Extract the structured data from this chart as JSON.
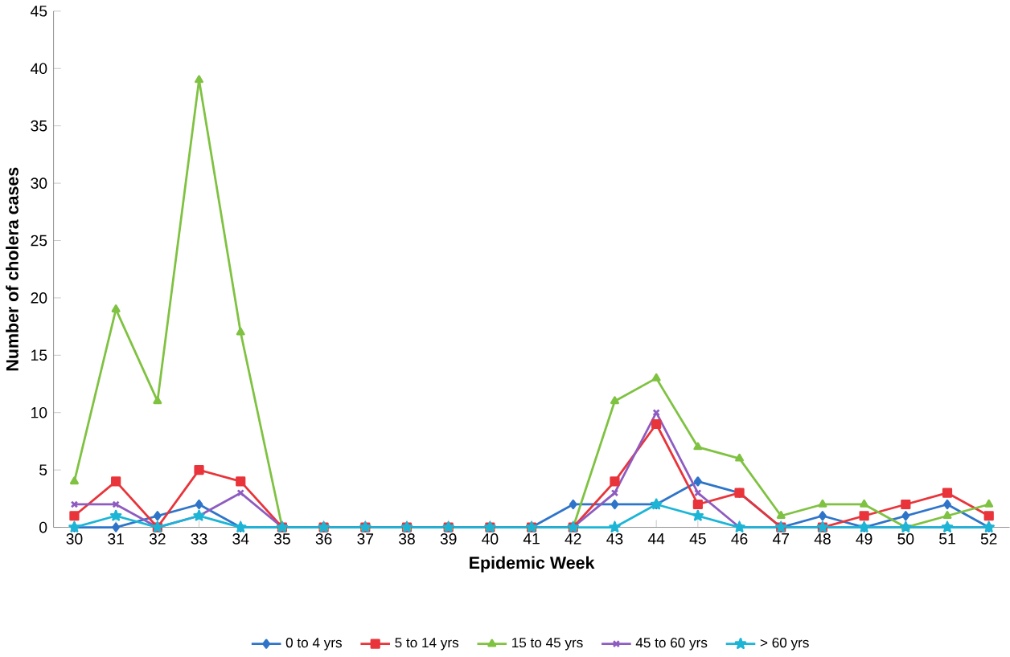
{
  "chart_data": {
    "type": "line",
    "xlabel": "Epidemic Week",
    "ylabel": "Number of cholera cases",
    "categories": [
      "30",
      "31",
      "32",
      "33",
      "34",
      "35",
      "36",
      "37",
      "38",
      "39",
      "40",
      "41",
      "42",
      "43",
      "44",
      "45",
      "46",
      "47",
      "48",
      "49",
      "50",
      "51",
      "52"
    ],
    "ylim": [
      0,
      45
    ],
    "yticks": [
      0,
      5,
      10,
      15,
      20,
      25,
      30,
      35,
      40,
      45
    ],
    "grid": false,
    "legend": "bottom",
    "series": [
      {
        "name": "0 to 4 yrs",
        "color": "#2e75c9",
        "marker": "diamond",
        "values": [
          0,
          0,
          1,
          2,
          0,
          0,
          0,
          0,
          0,
          0,
          0,
          0,
          2,
          2,
          2,
          4,
          3,
          0,
          1,
          0,
          1,
          2,
          0
        ]
      },
      {
        "name": "5 to 14 yrs",
        "color": "#e8343a",
        "marker": "square",
        "values": [
          1,
          4,
          0,
          5,
          4,
          0,
          0,
          0,
          0,
          0,
          0,
          0,
          0,
          4,
          9,
          2,
          3,
          0,
          0,
          1,
          2,
          3,
          1
        ]
      },
      {
        "name": "15 to 45 yrs",
        "color": "#7fc241",
        "marker": "triangle",
        "values": [
          4,
          19,
          11,
          39,
          17,
          0,
          0,
          0,
          0,
          0,
          0,
          0,
          0,
          11,
          13,
          7,
          6,
          1,
          2,
          2,
          0,
          1,
          2
        ]
      },
      {
        "name": "45 to 60 yrs",
        "color": "#8e5cc0",
        "marker": "cross",
        "values": [
          2,
          2,
          0,
          1,
          3,
          0,
          0,
          0,
          0,
          0,
          0,
          0,
          0,
          3,
          10,
          3,
          0,
          0,
          0,
          0,
          0,
          0,
          0
        ]
      },
      {
        "name": "> 60 yrs",
        "color": "#1cb5d6",
        "marker": "star",
        "values": [
          0,
          1,
          0,
          1,
          0,
          0,
          0,
          0,
          0,
          0,
          0,
          0,
          0,
          0,
          2,
          1,
          0,
          0,
          0,
          0,
          0,
          0,
          0
        ]
      }
    ]
  }
}
